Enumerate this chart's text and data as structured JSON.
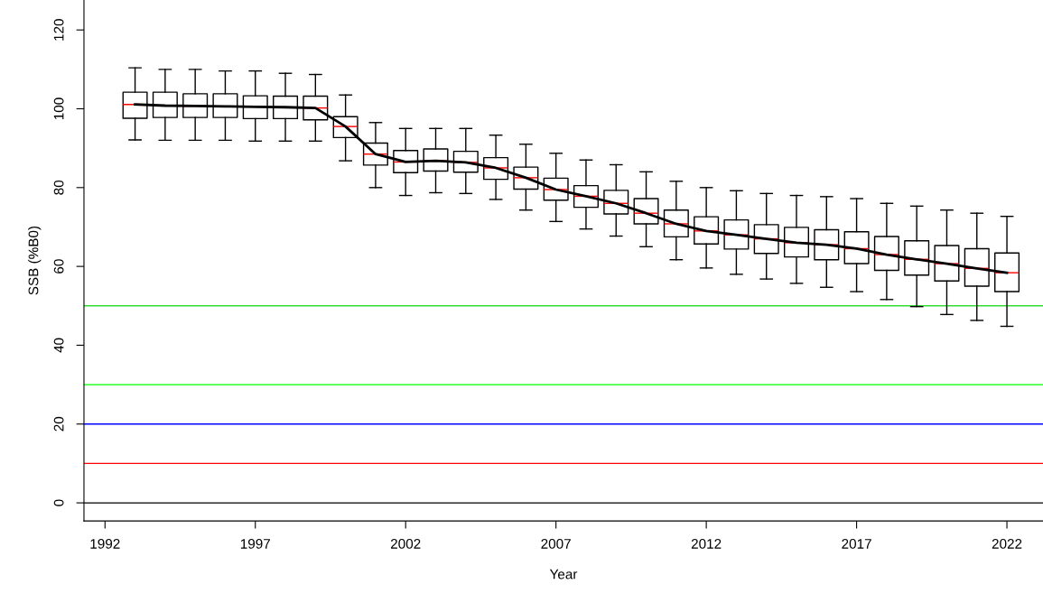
{
  "chart_data": {
    "type": "box",
    "xlabel": "Year",
    "ylabel": "SSB (%B0)",
    "x": [
      1993,
      1994,
      1995,
      1996,
      1997,
      1998,
      1999,
      2000,
      2001,
      2002,
      2003,
      2004,
      2005,
      2006,
      2007,
      2008,
      2009,
      2010,
      2011,
      2012,
      2013,
      2014,
      2015,
      2016,
      2017,
      2018,
      2019,
      2020,
      2021,
      2022
    ],
    "xlim": [
      1991.3,
      2023.2
    ],
    "xticks": [
      1992,
      1997,
      2002,
      2007,
      2012,
      2017,
      2022
    ],
    "ylim": [
      -4.6,
      127.6
    ],
    "yticks": [
      0,
      20,
      40,
      60,
      80,
      100,
      120
    ],
    "series": [
      {
        "color": "#000000",
        "boxes": [
          {
            "low": 92.1,
            "q1": 97.6,
            "median": 101.1,
            "q3": 104.2,
            "high": 110.4
          },
          {
            "low": 92.0,
            "q1": 97.8,
            "median": 100.8,
            "q3": 104.2,
            "high": 110.0
          },
          {
            "low": 92.0,
            "q1": 97.8,
            "median": 100.7,
            "q3": 103.8,
            "high": 110.0
          },
          {
            "low": 92.0,
            "q1": 97.8,
            "median": 100.6,
            "q3": 103.8,
            "high": 109.6
          },
          {
            "low": 91.8,
            "q1": 97.5,
            "median": 100.5,
            "q3": 103.3,
            "high": 109.6
          },
          {
            "low": 91.8,
            "q1": 97.5,
            "median": 100.4,
            "q3": 103.2,
            "high": 109.0
          },
          {
            "low": 91.8,
            "q1": 97.2,
            "median": 100.2,
            "q3": 103.2,
            "high": 108.7
          },
          {
            "low": 86.8,
            "q1": 92.7,
            "median": 95.5,
            "q3": 98.0,
            "high": 103.5
          },
          {
            "low": 80.0,
            "q1": 85.7,
            "median": 88.5,
            "q3": 91.3,
            "high": 96.5
          },
          {
            "low": 78.0,
            "q1": 83.8,
            "median": 86.5,
            "q3": 89.4,
            "high": 95.0
          },
          {
            "low": 78.7,
            "q1": 84.2,
            "median": 86.8,
            "q3": 89.8,
            "high": 95.0
          },
          {
            "low": 78.5,
            "q1": 83.9,
            "median": 86.4,
            "q3": 89.2,
            "high": 95.0
          },
          {
            "low": 77.0,
            "q1": 82.1,
            "median": 85.0,
            "q3": 87.6,
            "high": 93.3
          },
          {
            "low": 74.3,
            "q1": 79.6,
            "median": 82.5,
            "q3": 85.2,
            "high": 91.0
          },
          {
            "low": 71.4,
            "q1": 76.8,
            "median": 79.5,
            "q3": 82.4,
            "high": 88.7
          },
          {
            "low": 69.5,
            "q1": 75.0,
            "median": 77.8,
            "q3": 80.5,
            "high": 87.0
          },
          {
            "low": 67.7,
            "q1": 73.3,
            "median": 76.0,
            "q3": 79.3,
            "high": 85.8
          },
          {
            "low": 65.0,
            "q1": 70.8,
            "median": 73.5,
            "q3": 77.2,
            "high": 84.0
          },
          {
            "low": 61.7,
            "q1": 67.5,
            "median": 70.8,
            "q3": 74.3,
            "high": 81.6
          },
          {
            "low": 59.6,
            "q1": 65.7,
            "median": 69.0,
            "q3": 72.6,
            "high": 80.0
          },
          {
            "low": 58.0,
            "q1": 64.4,
            "median": 68.0,
            "q3": 71.8,
            "high": 79.2
          },
          {
            "low": 56.8,
            "q1": 63.3,
            "median": 67.0,
            "q3": 70.6,
            "high": 78.5
          },
          {
            "low": 55.7,
            "q1": 62.4,
            "median": 66.0,
            "q3": 69.9,
            "high": 78.0
          },
          {
            "low": 54.7,
            "q1": 61.7,
            "median": 65.5,
            "q3": 69.3,
            "high": 77.7
          },
          {
            "low": 53.6,
            "q1": 60.7,
            "median": 64.5,
            "q3": 68.8,
            "high": 77.2
          },
          {
            "low": 51.6,
            "q1": 59.0,
            "median": 63.0,
            "q3": 67.6,
            "high": 76.0
          },
          {
            "low": 49.8,
            "q1": 57.8,
            "median": 61.8,
            "q3": 66.5,
            "high": 75.3
          },
          {
            "low": 47.8,
            "q1": 56.3,
            "median": 60.7,
            "q3": 65.3,
            "high": 74.3
          },
          {
            "low": 46.3,
            "q1": 55.0,
            "median": 59.5,
            "q3": 64.5,
            "high": 73.5
          },
          {
            "low": 44.8,
            "q1": 53.6,
            "median": 58.4,
            "q3": 63.4,
            "high": 72.7
          }
        ]
      },
      {
        "type": "line",
        "color": "#000000",
        "values": [
          101.1,
          100.8,
          100.7,
          100.6,
          100.5,
          100.4,
          100.2,
          95.5,
          88.5,
          86.5,
          86.8,
          86.4,
          85.0,
          82.5,
          79.5,
          77.8,
          76.0,
          73.5,
          70.8,
          69.0,
          68.0,
          67.0,
          66.0,
          65.5,
          64.5,
          63.0,
          61.8,
          60.7,
          59.5,
          58.4
        ]
      }
    ],
    "ref_lines": [
      {
        "axis": "y",
        "value": 0,
        "color": "#000000"
      },
      {
        "axis": "y",
        "value": 10,
        "color": "#ff0000"
      },
      {
        "axis": "y",
        "value": 20,
        "color": "#0000ff"
      },
      {
        "axis": "y",
        "value": 30,
        "color": "#00ff00"
      },
      {
        "axis": "y",
        "value": 50,
        "color": "#33dd33"
      }
    ],
    "grid": false
  }
}
